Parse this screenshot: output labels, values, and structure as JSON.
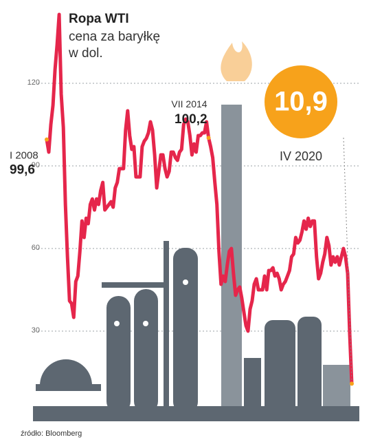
{
  "chart_data": {
    "type": "line",
    "title": "Ropa WTI",
    "subtitle": [
      "cena za baryłkę",
      "w dol."
    ],
    "source": "źródło: Bloomberg",
    "categories": [
      null,
      null,
      null,
      null,
      null,
      null,
      null,
      null,
      null,
      null,
      null,
      null,
      null,
      null,
      null,
      null,
      null,
      null,
      null,
      null,
      null,
      null,
      null,
      null,
      null,
      null,
      null,
      null,
      null,
      null,
      null,
      null,
      null,
      null,
      null,
      null,
      null,
      null,
      null,
      null,
      null,
      null,
      null,
      null,
      null,
      null,
      null,
      null,
      null,
      null,
      null,
      null,
      null,
      null,
      null,
      null,
      null,
      null,
      null,
      null,
      null,
      null,
      null,
      null,
      null,
      null,
      null,
      null,
      null,
      null,
      null,
      null,
      null,
      null,
      null,
      null,
      null,
      null,
      null,
      null,
      null,
      null,
      null,
      null,
      null,
      null,
      null,
      null,
      null,
      null,
      null,
      null,
      null,
      null,
      null,
      null,
      null,
      null,
      null,
      null,
      null,
      null,
      null,
      null,
      null,
      null,
      null,
      null,
      null,
      null,
      null,
      null,
      null,
      null,
      null,
      null,
      null,
      null,
      null,
      null,
      null,
      null,
      null,
      null,
      null,
      null,
      null,
      null,
      null,
      null,
      null,
      null,
      null,
      null,
      null,
      null,
      null,
      null,
      null,
      null,
      null,
      null,
      null,
      null,
      null,
      null,
      null,
      null
    ],
    "series": [
      {
        "name": null,
        "color": "#e5264b",
        "values": [
          99.6,
          95,
          105,
          112,
          125,
          134,
          145,
          116,
          104,
          76,
          57,
          41,
          40,
          35,
          48,
          50,
          59,
          70,
          64,
          71,
          69,
          76,
          78,
          74,
          78,
          76,
          81,
          84,
          74,
          75,
          76,
          77,
          75,
          82,
          84,
          89,
          89,
          89,
          103,
          110,
          101,
          96,
          97,
          86,
          86,
          86,
          97,
          99,
          100,
          102,
          106,
          103,
          94,
          82,
          88,
          94,
          94,
          89,
          86,
          88,
          95,
          95,
          93,
          92,
          95,
          96,
          105,
          107,
          106,
          101,
          94,
          98,
          95,
          101,
          101,
          102,
          102,
          106,
          100.2,
          97,
          93,
          84,
          76,
          59,
          47,
          50,
          48,
          54,
          59,
          60,
          51,
          43,
          45,
          46,
          42,
          37,
          32,
          30,
          38,
          41,
          47,
          49,
          45,
          45,
          45,
          50,
          45,
          52,
          52,
          53,
          50,
          51,
          49,
          45,
          47,
          48,
          50,
          52,
          57,
          58,
          64,
          62,
          63,
          66,
          70,
          67,
          71,
          68,
          70,
          70,
          57,
          49,
          51,
          55,
          58,
          64,
          61,
          54,
          57,
          55,
          57,
          54,
          57,
          60,
          57,
          51,
          29,
          10.9
        ],
        "point_labels": [
          "I 2008",
          null,
          null,
          null,
          null,
          null,
          null,
          null,
          null,
          null,
          null,
          null,
          null,
          null,
          null,
          null,
          null,
          null,
          null,
          null,
          null,
          null,
          null,
          null,
          null,
          null,
          null,
          null,
          null,
          null,
          null,
          null,
          null,
          null,
          null,
          null,
          null,
          null,
          null,
          null,
          null,
          null,
          null,
          null,
          null,
          null,
          null,
          null,
          null,
          null,
          null,
          null,
          null,
          null,
          null,
          null,
          null,
          null,
          null,
          null,
          null,
          null,
          null,
          null,
          null,
          null,
          null,
          null,
          null,
          null,
          null,
          null,
          null,
          null,
          null,
          null,
          null,
          null,
          "VII 2014",
          null,
          null,
          null,
          null,
          null,
          null,
          null,
          null,
          null,
          null,
          null,
          null,
          null,
          null,
          null,
          null,
          null,
          null,
          null,
          null,
          null,
          null,
          null,
          null,
          null,
          null,
          null,
          null,
          null,
          null,
          null,
          null,
          null,
          null,
          null,
          null,
          null,
          null,
          null,
          null,
          null,
          null,
          null,
          null,
          null,
          null,
          null,
          null,
          null,
          null,
          null,
          null,
          null,
          null,
          null,
          null,
          null,
          null,
          null,
          null,
          null,
          null,
          null,
          null,
          null,
          null,
          null,
          null,
          "IV 2020"
        ],
        "value_labels": [
          "99,6",
          null,
          null,
          null,
          null,
          null,
          null,
          null,
          null,
          null,
          null,
          null,
          null,
          null,
          null,
          null,
          null,
          null,
          null,
          null,
          null,
          null,
          null,
          null,
          null,
          null,
          null,
          null,
          null,
          null,
          null,
          null,
          null,
          null,
          null,
          null,
          null,
          null,
          null,
          null,
          null,
          null,
          null,
          null,
          null,
          null,
          null,
          null,
          null,
          null,
          null,
          null,
          null,
          null,
          null,
          null,
          null,
          null,
          null,
          null,
          null,
          null,
          null,
          null,
          null,
          null,
          null,
          null,
          null,
          null,
          null,
          null,
          null,
          null,
          null,
          null,
          null,
          null,
          "100,2",
          null,
          null,
          null,
          null,
          null,
          null,
          null,
          null,
          null,
          null,
          null,
          null,
          null,
          null,
          null,
          null,
          null,
          null,
          null,
          null,
          null,
          null,
          null,
          null,
          null,
          null,
          null,
          null,
          null,
          null,
          null,
          null,
          null,
          null,
          null,
          null,
          null,
          null,
          null,
          null,
          null,
          null,
          null,
          null,
          null,
          null,
          null,
          null,
          null,
          null,
          null,
          null,
          null,
          null,
          null,
          null,
          null,
          null,
          null,
          null,
          null,
          null,
          null,
          null,
          null,
          null,
          null,
          null,
          "10,9"
        ]
      }
    ],
    "ylim": [
      0,
      150
    ],
    "yticks": [
      30,
      60,
      90,
      120
    ],
    "grid": true,
    "marker_color": "#f7a21b"
  }
}
